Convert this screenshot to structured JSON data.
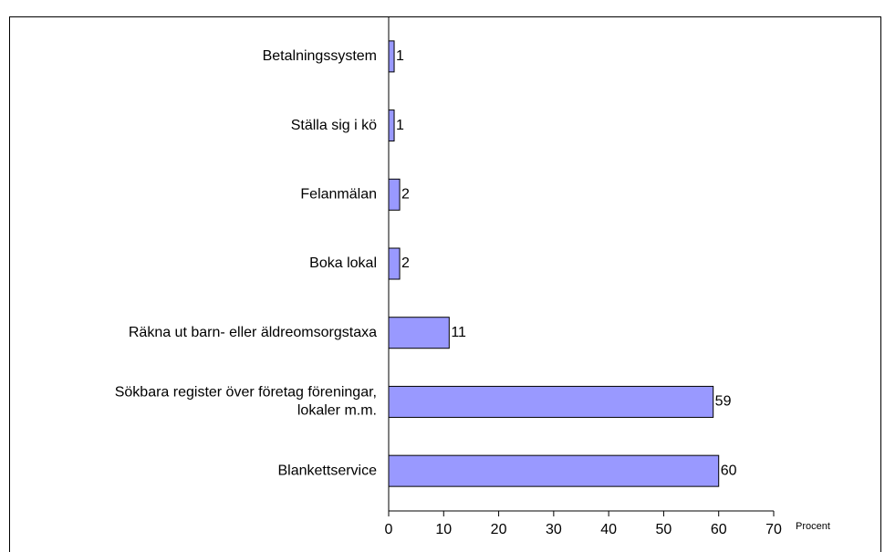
{
  "chart_data": {
    "type": "bar",
    "orientation": "horizontal",
    "categories": [
      "Betalningssystem",
      "Ställa sig i kö",
      "Felanmälan",
      "Boka lokal",
      "Räkna ut barn- eller äldreomsorgstaxa",
      "Sökbara register över företag föreningar,\nlokaler m.m.",
      "Blankettservice"
    ],
    "values": [
      1,
      1,
      2,
      2,
      11,
      59,
      60
    ],
    "color": "#9999ff",
    "x_label": "Procent",
    "xlim": [
      0,
      70
    ],
    "xticks": [
      0,
      10,
      20,
      30,
      40,
      50,
      60,
      70
    ],
    "grid": false
  }
}
